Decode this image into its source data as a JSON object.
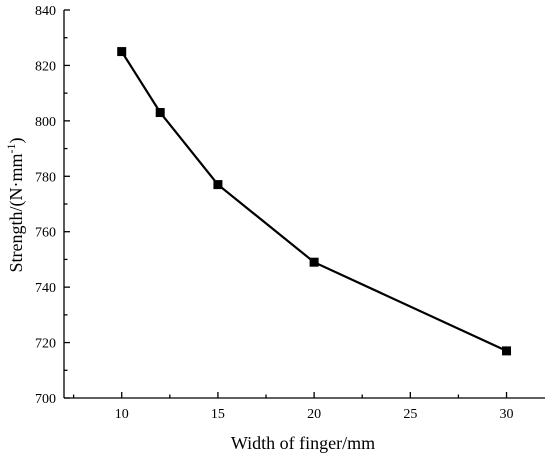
{
  "chart_data": {
    "type": "line",
    "xlabel": "Width of finger/mm",
    "ylabel_main": "Strength/(N·mm",
    "ylabel_sup": "-1",
    "ylabel_close": ")",
    "xlim": [
      7,
      32
    ],
    "ylim": [
      700,
      840
    ],
    "xticks": [
      10,
      15,
      20,
      25,
      30
    ],
    "yticks": [
      700,
      720,
      740,
      760,
      780,
      800,
      820,
      840
    ],
    "grid": false,
    "series": [
      {
        "x": [
          10,
          12,
          15,
          20,
          30
        ],
        "y": [
          825,
          803,
          777,
          749,
          717
        ],
        "marker": "square",
        "color": "#000000"
      }
    ]
  }
}
